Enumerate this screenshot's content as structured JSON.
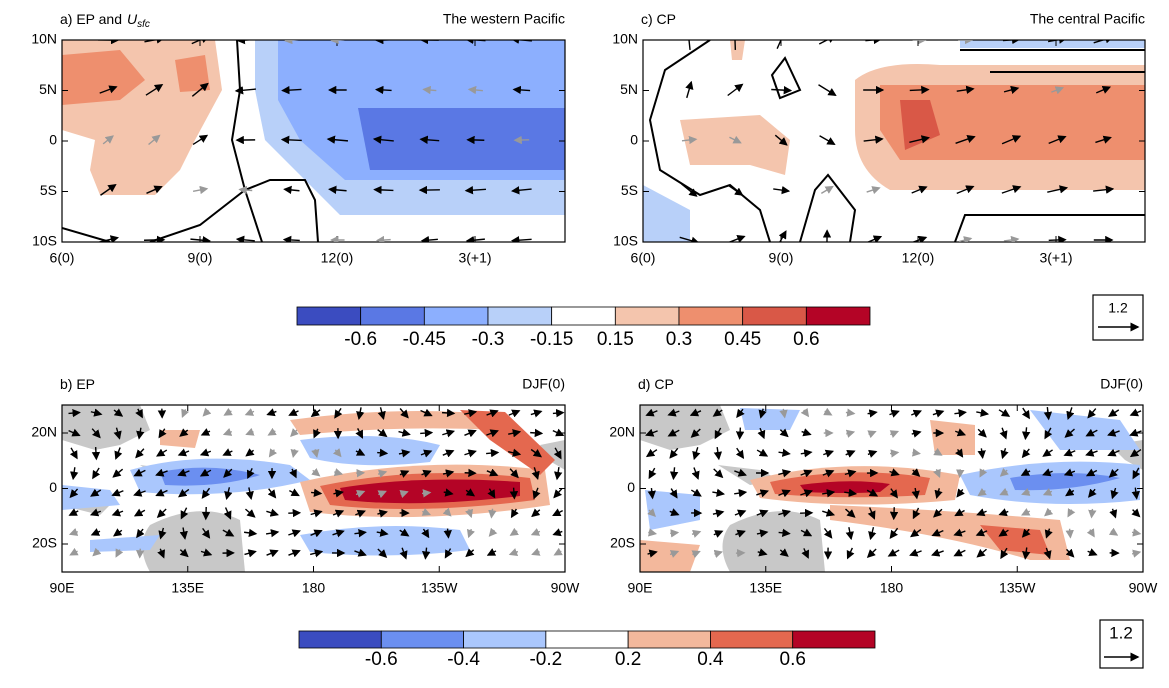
{
  "panels": [
    {
      "title": "a) EP and",
      "title_var": "U",
      "title_sub": "sfc",
      "region": "The western Pacific",
      "yticks": [
        "10N",
        "5N",
        "0",
        "5S",
        "10S"
      ],
      "xticks": [
        "6(0)",
        "9(0)",
        "12(0)",
        "3(+1)"
      ]
    },
    {
      "title": "c) CP",
      "region": "The central Pacific",
      "yticks": [
        "10N",
        "5N",
        "0",
        "5S",
        "10S"
      ],
      "xticks": [
        "6(0)",
        "9(0)",
        "12(0)",
        "3(+1)"
      ]
    },
    {
      "title": "b)  EP",
      "region": "DJF(0)",
      "yticks": [
        "20N",
        "0",
        "20S"
      ],
      "xticks": [
        "90E",
        "135E",
        "180",
        "135W",
        "90W"
      ]
    },
    {
      "title": "d)  CP",
      "region": "DJF(0)",
      "yticks": [
        "20N",
        "0",
        "20S"
      ],
      "xticks": [
        "90E",
        "135E",
        "180",
        "135W",
        "90W"
      ]
    }
  ],
  "colorbars": [
    {
      "labels": [
        "-0.6",
        "-0.45",
        "-0.3",
        "-0.15",
        "0.15",
        "0.3",
        "0.45",
        "0.6"
      ],
      "colors": [
        "#3b4cc0",
        "#5a78e4",
        "#8caffe",
        "#b8d0f9",
        "#ffffff",
        "#f4c5ad",
        "#ee8f6e",
        "#d95847",
        "#b40426"
      ],
      "reference": "1.2"
    },
    {
      "labels": [
        "-0.6",
        "-0.4",
        "-0.2",
        "0.2",
        "0.4",
        "0.6"
      ],
      "colors": [
        "#3b4cc0",
        "#6b8ff0",
        "#aac7fd",
        "#ffffff",
        "#f3b89c",
        "#e4684f",
        "#b40426"
      ],
      "reference": "1.2"
    }
  ]
}
